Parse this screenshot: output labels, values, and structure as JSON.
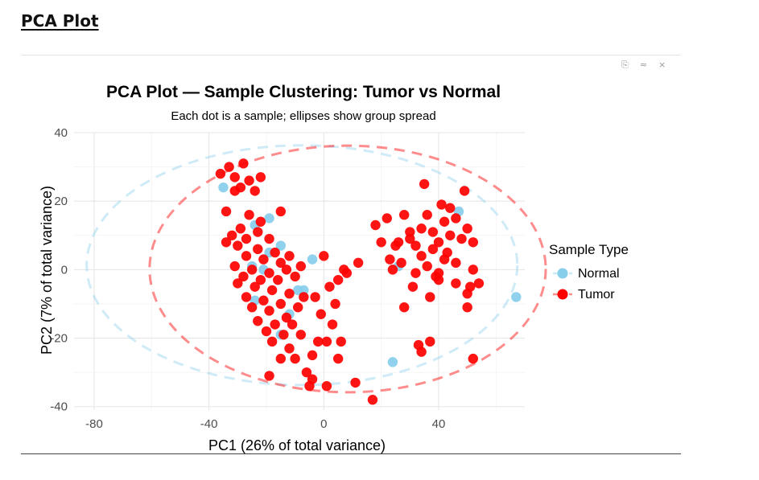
{
  "page": {
    "heading": "PCA Plot"
  },
  "toolbar": {
    "items": [
      {
        "name": "copy-icon",
        "glyph": "⎘"
      },
      {
        "name": "collapse-icon",
        "glyph": "≈"
      },
      {
        "name": "close-icon",
        "glyph": "×"
      }
    ]
  },
  "chart_data": {
    "type": "scatter",
    "title": "PCA Plot — Sample Clustering: Tumor vs Normal",
    "subtitle": "Each dot is a sample; ellipses show group spread",
    "xlabel": "PC1 (26% of total variance)",
    "ylabel": "PC2 (7% of total variance)",
    "xlim": [
      -87,
      70
    ],
    "ylim": [
      -41,
      40
    ],
    "xticks": [
      -80,
      -40,
      0,
      40
    ],
    "yticks": [
      -40,
      -20,
      0,
      20,
      40
    ],
    "grid": true,
    "legend": {
      "title": "Sample Type",
      "position": "right"
    },
    "series": [
      {
        "name": "Normal",
        "color": "#87ceeb",
        "points": [
          [
            -35,
            24
          ],
          [
            -19,
            15
          ],
          [
            -24,
            13
          ],
          [
            -15,
            7
          ],
          [
            -19,
            5
          ],
          [
            -25,
            1
          ],
          [
            -21,
            0
          ],
          [
            -4,
            3
          ],
          [
            -7,
            -6
          ],
          [
            -9,
            -6
          ],
          [
            -24,
            -9
          ],
          [
            -12,
            -13
          ],
          [
            -15,
            -19
          ],
          [
            24,
            -27
          ],
          [
            47,
            17
          ],
          [
            26,
            1
          ],
          [
            67,
            -8
          ]
        ],
        "ellipse": {
          "cx": -7.6,
          "cy": 1.3,
          "rx": 75,
          "ry": 35,
          "style": "dashed"
        }
      },
      {
        "name": "Tumor",
        "color": "#ff0000",
        "points": [
          [
            -36,
            28
          ],
          [
            -33,
            30
          ],
          [
            -28,
            31
          ],
          [
            -31,
            27
          ],
          [
            -26,
            26
          ],
          [
            -22,
            27
          ],
          [
            -29,
            24
          ],
          [
            -24,
            23
          ],
          [
            -31,
            23
          ],
          [
            -34,
            17
          ],
          [
            -26,
            16
          ],
          [
            -22,
            14
          ],
          [
            -15,
            17
          ],
          [
            -29,
            12
          ],
          [
            -23,
            11
          ],
          [
            -32,
            10
          ],
          [
            -27,
            9
          ],
          [
            -19,
            9
          ],
          [
            -34,
            8
          ],
          [
            -30,
            7
          ],
          [
            -23,
            6
          ],
          [
            -17,
            5
          ],
          [
            -12,
            4
          ],
          [
            -27,
            4
          ],
          [
            -21,
            3
          ],
          [
            -15,
            2
          ],
          [
            -31,
            1
          ],
          [
            -25,
            0
          ],
          [
            -19,
            -1
          ],
          [
            -13,
            0
          ],
          [
            -8,
            1
          ],
          [
            -28,
            -2
          ],
          [
            -22,
            -3
          ],
          [
            -16,
            -3
          ],
          [
            -10,
            -2
          ],
          [
            -30,
            -4
          ],
          [
            -24,
            -5
          ],
          [
            -18,
            -6
          ],
          [
            -12,
            -7
          ],
          [
            -27,
            -8
          ],
          [
            -21,
            -9
          ],
          [
            -15,
            -10
          ],
          [
            -9,
            -11
          ],
          [
            -25,
            -11
          ],
          [
            -19,
            -12
          ],
          [
            -13,
            -14
          ],
          [
            -23,
            -15
          ],
          [
            -17,
            -16
          ],
          [
            -11,
            -16
          ],
          [
            -20,
            -18
          ],
          [
            -14,
            -19
          ],
          [
            -8,
            -19
          ],
          [
            -18,
            -21
          ],
          [
            -12,
            -23
          ],
          [
            -15,
            -26
          ],
          [
            -10,
            -26
          ],
          [
            -7,
            -8
          ],
          [
            -3,
            -8
          ],
          [
            2,
            -5
          ],
          [
            5,
            -3
          ],
          [
            8,
            -1
          ],
          [
            4,
            -10
          ],
          [
            -1,
            -13
          ],
          [
            3,
            -16
          ],
          [
            -2,
            -21
          ],
          [
            1,
            -21
          ],
          [
            6,
            -21
          ],
          [
            -4,
            -25
          ],
          [
            5,
            -26
          ],
          [
            -6,
            -30
          ],
          [
            -4,
            -32
          ],
          [
            -5,
            -34
          ],
          [
            1,
            -34
          ],
          [
            11,
            -33
          ],
          [
            17,
            -38
          ],
          [
            -19,
            -31
          ],
          [
            0,
            4
          ],
          [
            7,
            0
          ],
          [
            12,
            2
          ],
          [
            20,
            8
          ],
          [
            22,
            15
          ],
          [
            18,
            13
          ],
          [
            25,
            7
          ],
          [
            23,
            3
          ],
          [
            26,
            8
          ],
          [
            28,
            16
          ],
          [
            30,
            11
          ],
          [
            32,
            7
          ],
          [
            34,
            12
          ],
          [
            36,
            16
          ],
          [
            38,
            11
          ],
          [
            40,
            8
          ],
          [
            42,
            14
          ],
          [
            44,
            18
          ],
          [
            46,
            15
          ],
          [
            48,
            9
          ],
          [
            50,
            12
          ],
          [
            52,
            8
          ],
          [
            34,
            4
          ],
          [
            36,
            1
          ],
          [
            40,
            -1
          ],
          [
            42,
            3
          ],
          [
            46,
            -4
          ],
          [
            50,
            -7
          ],
          [
            54,
            -4
          ],
          [
            31,
            -5
          ],
          [
            28,
            -11
          ],
          [
            37,
            -8
          ],
          [
            40,
            -3
          ],
          [
            33,
            -22
          ],
          [
            34,
            -24
          ],
          [
            37,
            -21
          ],
          [
            52,
            -26
          ],
          [
            50,
            -11
          ],
          [
            51,
            -5
          ],
          [
            39,
            -2
          ],
          [
            43,
            5
          ],
          [
            46,
            2
          ],
          [
            35,
            25
          ],
          [
            41,
            19
          ],
          [
            49,
            23
          ],
          [
            44,
            10
          ],
          [
            38,
            6
          ],
          [
            52,
            0
          ],
          [
            24,
            0
          ],
          [
            27,
            2
          ],
          [
            30,
            9
          ],
          [
            32,
            -1
          ]
        ],
        "ellipse": {
          "cx": 8.3,
          "cy": 0.2,
          "rx": 69,
          "ry": 36,
          "style": "dashed"
        }
      }
    ]
  }
}
